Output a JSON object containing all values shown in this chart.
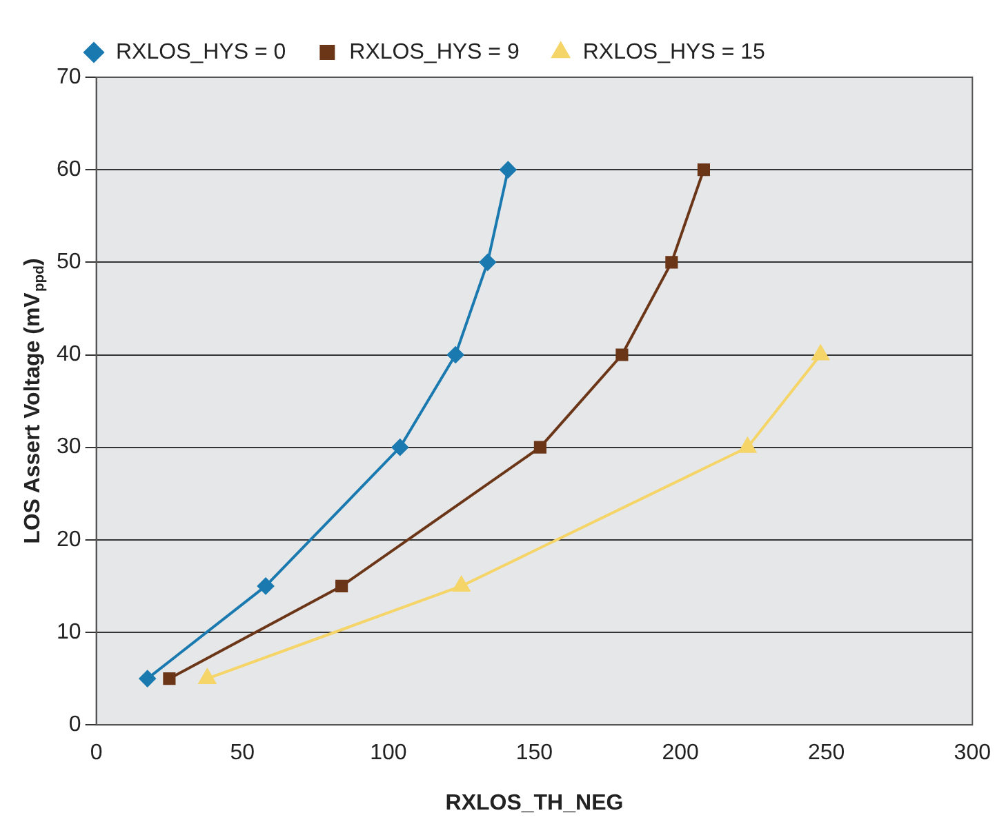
{
  "chart_data": {
    "type": "line",
    "xlabel": "RXLOS_TH_NEG",
    "ylabel": "LOS Assert Voltage (mV$_{ppd}$)",
    "xlim": [
      0,
      300
    ],
    "xticks": [
      0,
      50,
      100,
      150,
      200,
      250,
      300
    ],
    "ylim": [
      0,
      70
    ],
    "yticks": [
      0,
      10,
      20,
      30,
      40,
      50,
      60,
      70
    ],
    "grid": "y",
    "legend": "top",
    "line_style": "solid",
    "series": [
      {
        "name": "RXLOS_HYS = 0",
        "color": "#1a7ab0",
        "marker": "diamond",
        "x": [
          17.5,
          58,
          104,
          123,
          134,
          141
        ],
        "values": [
          5,
          15,
          30,
          40,
          50,
          60
        ]
      },
      {
        "name": "RXLOS_HYS = 9",
        "color": "#6b3518",
        "marker": "square",
        "x": [
          25,
          84,
          152,
          180,
          197,
          208
        ],
        "values": [
          5,
          15,
          30,
          40,
          50,
          60
        ]
      },
      {
        "name": "RXLOS_HYS = 15",
        "color": "#f5d468",
        "marker": "triangle",
        "x": [
          38,
          125,
          223,
          248
        ],
        "values": [
          5,
          15,
          30,
          40
        ]
      }
    ]
  }
}
